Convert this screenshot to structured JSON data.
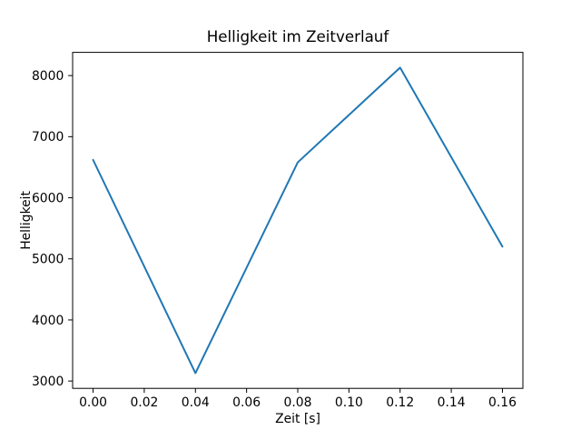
{
  "chart_data": {
    "type": "line",
    "title": "Helligkeit im Zeitverlauf",
    "xlabel": "Zeit [s]",
    "ylabel": "Helligkeit",
    "x": [
      0.0,
      0.04,
      0.08,
      0.12,
      0.16
    ],
    "y": [
      6620,
      3130,
      6580,
      8130,
      5200
    ],
    "x_ticks": [
      0.0,
      0.02,
      0.04,
      0.06,
      0.08,
      0.1,
      0.12,
      0.14,
      0.16
    ],
    "x_tick_labels": [
      "0.00",
      "0.02",
      "0.04",
      "0.06",
      "0.08",
      "0.10",
      "0.12",
      "0.14",
      "0.16"
    ],
    "y_ticks": [
      3000,
      4000,
      5000,
      6000,
      7000,
      8000
    ],
    "y_tick_labels": [
      "3000",
      "4000",
      "5000",
      "6000",
      "7000",
      "8000"
    ],
    "xlim": [
      -0.008,
      0.168
    ],
    "ylim": [
      2880,
      8380
    ],
    "line_color": "#1f77b4",
    "spine_color": "#000000",
    "background": "#ffffff",
    "grid": false,
    "legend": null
  }
}
